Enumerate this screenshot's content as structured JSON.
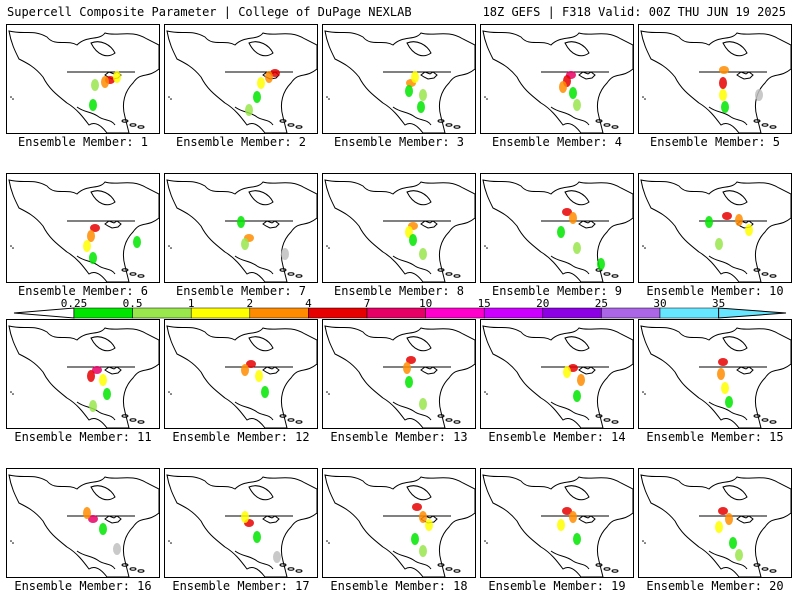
{
  "header": {
    "title": "Supercell Composite Parameter | College of DuPage NEXLAB",
    "run_info": "18Z GEFS | F318 Valid: 00Z THU JUN 19 2025"
  },
  "members": [
    {
      "label": "Ensemble Member: 1"
    },
    {
      "label": "Ensemble Member: 2"
    },
    {
      "label": "Ensemble Member: 3"
    },
    {
      "label": "Ensemble Member: 4"
    },
    {
      "label": "Ensemble Member: 5"
    },
    {
      "label": "Ensemble Member: 6"
    },
    {
      "label": "Ensemble Member: 7"
    },
    {
      "label": "Ensemble Member: 8"
    },
    {
      "label": "Ensemble Member: 9"
    },
    {
      "label": "Ensemble Member: 10"
    },
    {
      "label": "Ensemble Member: 11"
    },
    {
      "label": "Ensemble Member: 12"
    },
    {
      "label": "Ensemble Member: 13"
    },
    {
      "label": "Ensemble Member: 14"
    },
    {
      "label": "Ensemble Member: 15"
    },
    {
      "label": "Ensemble Member: 16"
    },
    {
      "label": "Ensemble Member: 17"
    },
    {
      "label": "Ensemble Member: 18"
    },
    {
      "label": "Ensemble Member: 19"
    },
    {
      "label": "Ensemble Member: 20"
    }
  ],
  "colorbar": {
    "ticks": [
      "0.25",
      "0.5",
      "1",
      "2",
      "4",
      "7",
      "10",
      "15",
      "20",
      "25",
      "30",
      "35"
    ],
    "colors": [
      "#bfbfbf",
      "#00e600",
      "#99e64d",
      "#ffff00",
      "#ff8c00",
      "#e60000",
      "#e60066",
      "#ff00cc",
      "#cc00ff",
      "#8c00e6",
      "#aa66e6",
      "#66e6ff"
    ]
  }
}
